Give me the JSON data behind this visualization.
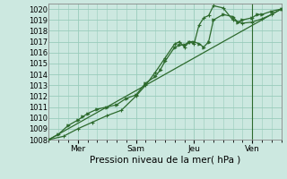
{
  "title": "",
  "xlabel": "Pression niveau de la mer( hPa )",
  "ylim": [
    1008,
    1020.5
  ],
  "xlim": [
    0,
    96
  ],
  "yticks": [
    1008,
    1009,
    1010,
    1011,
    1012,
    1013,
    1014,
    1015,
    1016,
    1017,
    1018,
    1019,
    1020
  ],
  "xtick_positions": [
    12,
    36,
    60,
    84
  ],
  "xtick_labels": [
    "Mer",
    "Sam",
    "Jeu",
    "Ven"
  ],
  "bg_color": "#cce8e0",
  "grid_color": "#99ccbb",
  "line_color": "#2d6a2d",
  "line1_x": [
    0,
    4,
    8,
    12,
    14,
    16,
    20,
    24,
    28,
    32,
    36,
    40,
    44,
    46,
    48,
    52,
    54,
    56,
    58,
    60,
    62,
    64,
    66,
    68,
    72,
    76,
    78,
    80,
    84,
    86,
    88,
    92,
    96
  ],
  "line1_y": [
    1008,
    1008.5,
    1009.3,
    1009.8,
    1010.1,
    1010.4,
    1010.8,
    1011.0,
    1011.2,
    1011.8,
    1012.1,
    1013.2,
    1013.8,
    1014.4,
    1015.2,
    1016.5,
    1016.7,
    1016.7,
    1017.0,
    1017.0,
    1016.8,
    1016.5,
    1017.0,
    1019.0,
    1019.5,
    1019.3,
    1018.8,
    1019.0,
    1019.2,
    1019.5,
    1019.5,
    1019.8,
    1020.0
  ],
  "line2_x": [
    0,
    6,
    12,
    18,
    24,
    30,
    36,
    40,
    44,
    48,
    52,
    54,
    56,
    58,
    60,
    62,
    64,
    66,
    68,
    72,
    76,
    80,
    84,
    88,
    92,
    96
  ],
  "line2_y": [
    1008,
    1008.3,
    1009.0,
    1009.6,
    1010.2,
    1010.7,
    1012.0,
    1013.0,
    1014.2,
    1015.5,
    1016.8,
    1017.0,
    1016.5,
    1017.0,
    1016.8,
    1018.5,
    1019.2,
    1019.4,
    1020.3,
    1020.1,
    1019.0,
    1018.7,
    1018.8,
    1019.1,
    1019.5,
    1020.0
  ],
  "line3_x": [
    0,
    96
  ],
  "line3_y": [
    1008,
    1020.0
  ],
  "vline_x": 84
}
